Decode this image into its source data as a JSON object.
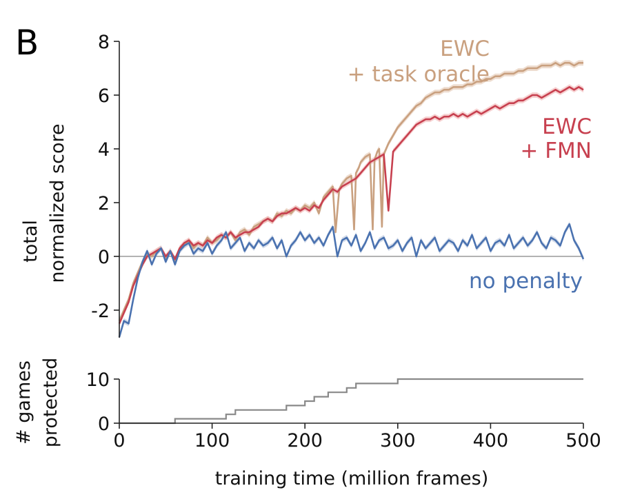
{
  "panel_label": "B",
  "chart_data": [
    {
      "type": "line",
      "ylabel_lines": [
        "total",
        "normalized score"
      ],
      "xlabel": "",
      "xlim": [
        0,
        500
      ],
      "ylim": [
        -3.0,
        8.0
      ],
      "yticks": [
        8,
        6,
        4,
        2,
        0,
        -2
      ],
      "ytick_labels": [
        "8",
        "6",
        "4",
        "2",
        "0",
        "-2"
      ],
      "reference_line_y": 0,
      "series": [
        {
          "name": "EWC + task oracle",
          "label_lines": [
            "EWC",
            "+ task oracle"
          ],
          "color": "#c9a07f",
          "band_color": "#e2c6b0",
          "x": [
            0,
            5,
            10,
            15,
            20,
            25,
            30,
            35,
            40,
            45,
            50,
            55,
            60,
            65,
            70,
            75,
            80,
            85,
            90,
            95,
            100,
            105,
            110,
            115,
            120,
            125,
            130,
            135,
            140,
            145,
            150,
            155,
            160,
            165,
            170,
            175,
            180,
            185,
            190,
            195,
            200,
            205,
            210,
            215,
            220,
            225,
            230,
            233,
            237,
            240,
            245,
            250,
            253,
            255,
            258,
            260,
            265,
            270,
            273,
            275,
            278,
            280,
            283,
            285,
            290,
            295,
            300,
            305,
            310,
            315,
            320,
            325,
            330,
            335,
            340,
            345,
            350,
            355,
            360,
            365,
            370,
            375,
            380,
            385,
            390,
            395,
            400,
            405,
            410,
            415,
            420,
            425,
            430,
            435,
            440,
            445,
            450,
            455,
            460,
            465,
            470,
            475,
            480,
            485,
            490,
            495,
            500
          ],
          "values": [
            -2.4,
            -2.0,
            -1.6,
            -1.0,
            -0.6,
            -0.2,
            0.1,
            0.0,
            0.2,
            0.3,
            -0.1,
            0.2,
            -0.2,
            0.3,
            0.4,
            0.6,
            0.3,
            0.5,
            0.4,
            0.7,
            0.5,
            0.6,
            0.8,
            0.7,
            0.9,
            0.6,
            0.9,
            1.0,
            0.8,
            1.1,
            1.2,
            1.3,
            1.4,
            1.3,
            1.6,
            1.5,
            1.7,
            1.6,
            1.8,
            1.7,
            1.9,
            1.8,
            2.0,
            1.6,
            2.2,
            2.4,
            2.6,
            0.9,
            2.5,
            2.7,
            2.9,
            3.0,
            1.0,
            3.1,
            3.3,
            3.5,
            3.7,
            3.8,
            1.0,
            3.6,
            3.9,
            4.0,
            1.1,
            3.8,
            4.2,
            4.5,
            4.8,
            5.0,
            5.2,
            5.4,
            5.6,
            5.7,
            5.9,
            6.0,
            6.1,
            6.1,
            6.2,
            6.2,
            6.3,
            6.3,
            6.3,
            6.4,
            6.4,
            6.5,
            6.5,
            6.6,
            6.6,
            6.7,
            6.7,
            6.8,
            6.8,
            6.8,
            6.9,
            6.9,
            7.0,
            7.0,
            7.0,
            7.1,
            7.1,
            7.1,
            7.2,
            7.1,
            7.2,
            7.2,
            7.1,
            7.2,
            7.2
          ]
        },
        {
          "name": "EWC + FMN",
          "label_lines": [
            "EWC",
            "+ FMN"
          ],
          "color": "#c7404f",
          "band_color": "#f0b3b3",
          "x": [
            0,
            5,
            10,
            15,
            20,
            25,
            30,
            35,
            40,
            45,
            50,
            55,
            60,
            65,
            70,
            75,
            80,
            85,
            90,
            95,
            100,
            105,
            110,
            115,
            120,
            125,
            130,
            135,
            140,
            145,
            150,
            155,
            160,
            165,
            170,
            175,
            180,
            185,
            190,
            195,
            200,
            205,
            210,
            215,
            220,
            225,
            230,
            235,
            240,
            245,
            250,
            255,
            260,
            265,
            270,
            275,
            280,
            285,
            290,
            295,
            300,
            305,
            310,
            315,
            320,
            325,
            330,
            335,
            340,
            345,
            350,
            355,
            360,
            365,
            370,
            375,
            380,
            385,
            390,
            395,
            400,
            405,
            410,
            415,
            420,
            425,
            430,
            435,
            440,
            445,
            450,
            455,
            460,
            465,
            470,
            475,
            480,
            485,
            490,
            495,
            500
          ],
          "values": [
            -2.5,
            -2.1,
            -1.7,
            -1.1,
            -0.7,
            -0.3,
            0.0,
            0.1,
            0.2,
            0.3,
            0.0,
            0.2,
            -0.1,
            0.3,
            0.5,
            0.6,
            0.4,
            0.5,
            0.4,
            0.6,
            0.5,
            0.7,
            0.8,
            0.7,
            0.9,
            0.7,
            0.8,
            0.9,
            0.9,
            1.0,
            1.1,
            1.3,
            1.4,
            1.3,
            1.5,
            1.6,
            1.6,
            1.7,
            1.8,
            1.7,
            1.8,
            1.7,
            1.9,
            1.8,
            2.1,
            2.3,
            2.5,
            2.4,
            2.6,
            2.7,
            2.8,
            2.9,
            3.1,
            3.3,
            3.5,
            3.6,
            3.7,
            3.8,
            1.7,
            3.9,
            4.1,
            4.3,
            4.5,
            4.7,
            4.9,
            5.0,
            5.1,
            5.1,
            5.2,
            5.1,
            5.2,
            5.2,
            5.3,
            5.2,
            5.3,
            5.2,
            5.3,
            5.4,
            5.3,
            5.4,
            5.5,
            5.6,
            5.5,
            5.6,
            5.7,
            5.7,
            5.8,
            5.8,
            5.9,
            6.0,
            6.0,
            5.9,
            6.0,
            6.1,
            6.2,
            6.1,
            6.2,
            6.3,
            6.2,
            6.3,
            6.2
          ]
        },
        {
          "name": "no penalty",
          "label_lines": [
            "no penalty"
          ],
          "color": "#4a72b0",
          "band_color": "#b8c4dc",
          "x": [
            0,
            5,
            10,
            15,
            20,
            25,
            30,
            35,
            40,
            45,
            50,
            55,
            60,
            65,
            70,
            75,
            80,
            85,
            90,
            95,
            100,
            105,
            110,
            115,
            120,
            125,
            130,
            135,
            140,
            145,
            150,
            155,
            160,
            165,
            170,
            175,
            180,
            185,
            190,
            195,
            200,
            205,
            210,
            215,
            220,
            225,
            230,
            235,
            240,
            245,
            250,
            255,
            260,
            265,
            270,
            275,
            280,
            285,
            290,
            295,
            300,
            305,
            310,
            315,
            320,
            325,
            330,
            335,
            340,
            345,
            350,
            355,
            360,
            365,
            370,
            375,
            380,
            385,
            390,
            395,
            400,
            405,
            410,
            415,
            420,
            425,
            430,
            435,
            440,
            445,
            450,
            455,
            460,
            465,
            470,
            475,
            480,
            485,
            490,
            495,
            500
          ],
          "values": [
            -3.0,
            -2.4,
            -2.5,
            -1.6,
            -0.8,
            -0.2,
            0.2,
            -0.3,
            0.1,
            0.3,
            -0.2,
            0.2,
            -0.3,
            0.2,
            0.4,
            0.5,
            0.1,
            0.3,
            0.2,
            0.5,
            0.1,
            0.4,
            0.6,
            0.9,
            0.3,
            0.5,
            0.7,
            0.2,
            0.5,
            0.3,
            0.6,
            0.4,
            0.5,
            0.7,
            0.3,
            0.6,
            0.0,
            0.4,
            0.6,
            0.9,
            0.6,
            0.8,
            0.5,
            0.7,
            0.4,
            0.8,
            1.1,
            0.0,
            0.6,
            0.7,
            0.4,
            0.8,
            0.2,
            0.5,
            0.9,
            0.3,
            0.6,
            0.7,
            0.3,
            0.4,
            0.6,
            0.2,
            0.5,
            0.7,
            0.0,
            0.6,
            0.3,
            0.5,
            0.7,
            0.2,
            0.4,
            0.6,
            0.5,
            0.2,
            0.6,
            0.4,
            0.8,
            0.3,
            0.5,
            0.7,
            0.2,
            0.5,
            0.6,
            0.4,
            0.8,
            0.3,
            0.5,
            0.7,
            0.4,
            0.6,
            0.9,
            0.5,
            0.3,
            0.7,
            0.6,
            0.4,
            0.9,
            1.2,
            0.6,
            0.3,
            -0.1
          ]
        }
      ]
    },
    {
      "type": "line",
      "ylabel_lines": [
        "# games",
        "protected"
      ],
      "xlabel": "training time (million frames)",
      "xlim": [
        0,
        500
      ],
      "ylim": [
        0,
        10
      ],
      "yticks": [
        10,
        0
      ],
      "ytick_labels": [
        "10",
        "0"
      ],
      "xticks": [
        0,
        100,
        200,
        300,
        400,
        500
      ],
      "xtick_labels": [
        "0",
        "100",
        "200",
        "300",
        "400",
        "500"
      ],
      "series": [
        {
          "name": "games protected",
          "color": "#888888",
          "step": true,
          "x": [
            0,
            60,
            60,
            115,
            115,
            125,
            125,
            180,
            180,
            200,
            200,
            210,
            210,
            225,
            225,
            245,
            245,
            255,
            255,
            290,
            290,
            300,
            300,
            500
          ],
          "values": [
            0,
            0,
            1,
            1,
            2,
            2,
            3,
            3,
            4,
            4,
            5,
            5,
            6,
            6,
            7,
            7,
            8,
            8,
            9,
            9,
            9,
            9,
            10,
            10
          ]
        }
      ]
    }
  ]
}
